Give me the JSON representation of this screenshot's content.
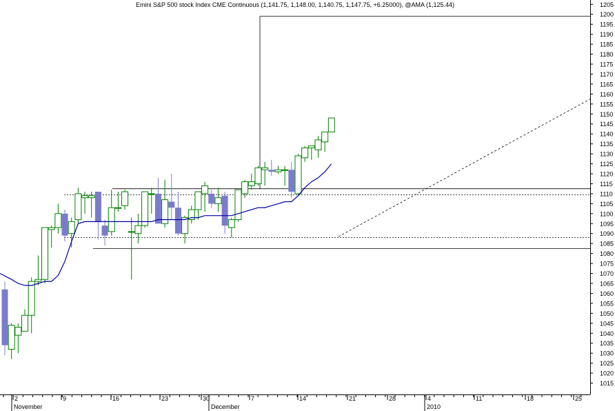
{
  "chart_data": {
    "type": "candlestick",
    "title": "Emini S&P 500 stock Index CME Continuous (1,141.75, 1,148.00, 1,140.75, 1,147.75, +6.25000), @AMA (1,125.44)",
    "ylim": [
      1010,
      1207
    ],
    "y_ticks": [
      1015,
      1020,
      1025,
      1030,
      1035,
      1040,
      1045,
      1050,
      1055,
      1060,
      1065,
      1070,
      1075,
      1080,
      1085,
      1090,
      1095,
      1100,
      1105,
      1110,
      1115,
      1120,
      1125,
      1130,
      1135,
      1140,
      1145,
      1150,
      1155,
      1160,
      1165,
      1170,
      1175,
      1180,
      1185,
      1190,
      1195,
      1200,
      1205
    ],
    "x_day_labels": [
      "2",
      "9",
      "16",
      "23",
      "30",
      "7",
      "14",
      "21",
      "28",
      "4",
      "11",
      "18",
      "25"
    ],
    "x_month_labels": [
      "November",
      "December",
      "2010"
    ],
    "colors": {
      "up_candle": "#008000",
      "down_candle": "#7b7bcc",
      "ama_line": "#0000a0",
      "lines": "#000000"
    },
    "candles": [
      {
        "o": 1062,
        "h": 1066,
        "l": 1029,
        "c": 1034
      },
      {
        "o": 1032,
        "h": 1045,
        "l": 1027,
        "c": 1044
      },
      {
        "o": 1039,
        "h": 1045,
        "l": 1030,
        "c": 1043
      },
      {
        "o": 1041,
        "h": 1052,
        "l": 1041,
        "c": 1049
      },
      {
        "o": 1049,
        "h": 1068,
        "l": 1040,
        "c": 1066
      },
      {
        "o": 1066,
        "h": 1079,
        "l": 1064,
        "c": 1067
      },
      {
        "o": 1067,
        "h": 1093,
        "l": 1065,
        "c": 1093
      },
      {
        "o": 1092,
        "h": 1094,
        "l": 1083,
        "c": 1093
      },
      {
        "o": 1093,
        "h": 1105,
        "l": 1090,
        "c": 1100
      },
      {
        "o": 1100,
        "h": 1102,
        "l": 1086,
        "c": 1089
      },
      {
        "o": 1090,
        "h": 1098,
        "l": 1083,
        "c": 1096
      },
      {
        "o": 1097,
        "h": 1113,
        "l": 1095,
        "c": 1110
      },
      {
        "o": 1108,
        "h": 1111,
        "l": 1100,
        "c": 1109
      },
      {
        "o": 1108,
        "h": 1111,
        "l": 1098,
        "c": 1109
      },
      {
        "o": 1111,
        "h": 1111,
        "l": 1087,
        "c": 1096
      },
      {
        "o": 1094,
        "h": 1097,
        "l": 1084,
        "c": 1089
      },
      {
        "o": 1091,
        "h": 1112,
        "l": 1089,
        "c": 1103
      },
      {
        "o": 1103,
        "h": 1111,
        "l": 1101,
        "c": 1103
      },
      {
        "o": 1104,
        "h": 1112,
        "l": 1102,
        "c": 1111
      },
      {
        "o": 1091,
        "h": 1098,
        "l": 1067,
        "c": 1091
      },
      {
        "o": 1090,
        "h": 1100,
        "l": 1085,
        "c": 1094
      },
      {
        "o": 1094,
        "h": 1111,
        "l": 1093,
        "c": 1111
      },
      {
        "o": 1110,
        "h": 1113,
        "l": 1100,
        "c": 1110
      },
      {
        "o": 1110,
        "h": 1118,
        "l": 1096,
        "c": 1095
      },
      {
        "o": 1095,
        "h": 1117,
        "l": 1093,
        "c": 1107
      },
      {
        "o": 1106,
        "h": 1120,
        "l": 1097,
        "c": 1103
      },
      {
        "o": 1103,
        "h": 1111,
        "l": 1089,
        "c": 1090
      },
      {
        "o": 1090,
        "h": 1099,
        "l": 1085,
        "c": 1098
      },
      {
        "o": 1097,
        "h": 1104,
        "l": 1095,
        "c": 1102
      },
      {
        "o": 1102,
        "h": 1111,
        "l": 1097,
        "c": 1111
      },
      {
        "o": 1110,
        "h": 1116,
        "l": 1101,
        "c": 1114
      },
      {
        "o": 1110,
        "h": 1112,
        "l": 1103,
        "c": 1105
      },
      {
        "o": 1105,
        "h": 1113,
        "l": 1101,
        "c": 1108
      },
      {
        "o": 1109,
        "h": 1111,
        "l": 1090,
        "c": 1094
      },
      {
        "o": 1093,
        "h": 1098,
        "l": 1088,
        "c": 1097
      },
      {
        "o": 1097,
        "h": 1112,
        "l": 1096,
        "c": 1112
      },
      {
        "o": 1110,
        "h": 1117,
        "l": 1108,
        "c": 1116
      },
      {
        "o": 1114,
        "h": 1120,
        "l": 1112,
        "c": 1116
      },
      {
        "o": 1115,
        "h": 1124,
        "l": 1114,
        "c": 1123
      },
      {
        "o": 1122,
        "h": 1126,
        "l": 1114,
        "c": 1123
      },
      {
        "o": 1122,
        "h": 1127,
        "l": 1119,
        "c": 1121
      },
      {
        "o": 1121,
        "h": 1124,
        "l": 1120,
        "c": 1122
      },
      {
        "o": 1122,
        "h": 1124,
        "l": 1114,
        "c": 1122
      },
      {
        "o": 1122,
        "h": 1126,
        "l": 1108,
        "c": 1111
      },
      {
        "o": 1110,
        "h": 1130,
        "l": 1109,
        "c": 1129
      },
      {
        "o": 1128,
        "h": 1134,
        "l": 1126,
        "c": 1133
      },
      {
        "o": 1133,
        "h": 1134,
        "l": 1127,
        "c": 1134
      },
      {
        "o": 1132,
        "h": 1139,
        "l": 1128,
        "c": 1137
      },
      {
        "o": 1136,
        "h": 1141,
        "l": 1131,
        "c": 1141
      },
      {
        "o": 1141,
        "h": 1148,
        "l": 1141,
        "c": 1148
      }
    ],
    "ama_line": [
      1070,
      1067,
      1065,
      1064,
      1064,
      1065,
      1066,
      1066,
      1069,
      1076,
      1086,
      1095,
      1096,
      1096,
      1096,
      1096,
      1096,
      1096,
      1096,
      1096,
      1096,
      1096,
      1096,
      1097,
      1097,
      1097,
      1097,
      1097,
      1098,
      1098,
      1099,
      1099,
      1099,
      1099,
      1099,
      1100,
      1101,
      1102,
      1103,
      1103,
      1104,
      1105,
      1106,
      1106,
      1109,
      1113,
      1116,
      1118,
      1121,
      1125
    ]
  }
}
